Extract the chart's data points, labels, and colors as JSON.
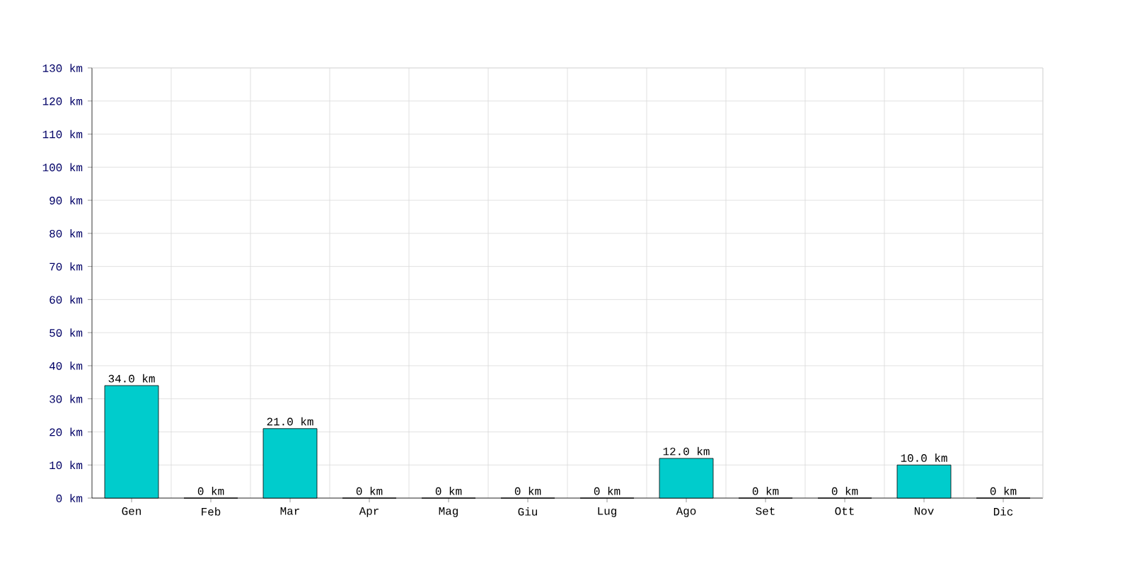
{
  "chart_data": {
    "type": "bar",
    "categories": [
      "Gen",
      "Feb",
      "Mar",
      "Apr",
      "Mag",
      "Giu",
      "Lug",
      "Ago",
      "Set",
      "Ott",
      "Nov",
      "Dic"
    ],
    "values": [
      34,
      0,
      21,
      0,
      0,
      0,
      0,
      12,
      0,
      0,
      10,
      0
    ],
    "value_labels": [
      "34.0 km",
      "0 km",
      "21.0 km",
      "0 km",
      "0 km",
      "0 km",
      "0 km",
      "12.0 km",
      "0 km",
      "0 km",
      "10.0 km",
      "0 km"
    ],
    "color": "#00cccc",
    "ylim": [
      0,
      130
    ],
    "yticks": [
      {
        "value": 0,
        "label": "0 km"
      },
      {
        "value": 10,
        "label": "10 km"
      },
      {
        "value": 20,
        "label": "20 km"
      },
      {
        "value": 30,
        "label": "30 km"
      },
      {
        "value": 40,
        "label": "40 km"
      },
      {
        "value": 50,
        "label": "50 km"
      },
      {
        "value": 60,
        "label": "60 km"
      },
      {
        "value": 70,
        "label": "70 km"
      },
      {
        "value": 80,
        "label": "80 km"
      },
      {
        "value": 90,
        "label": "90 km"
      },
      {
        "value": 100,
        "label": "100 km"
      },
      {
        "value": 110,
        "label": "110 km"
      },
      {
        "value": 120,
        "label": "120 km"
      },
      {
        "value": 130,
        "label": "130 km"
      }
    ],
    "grid": true
  }
}
